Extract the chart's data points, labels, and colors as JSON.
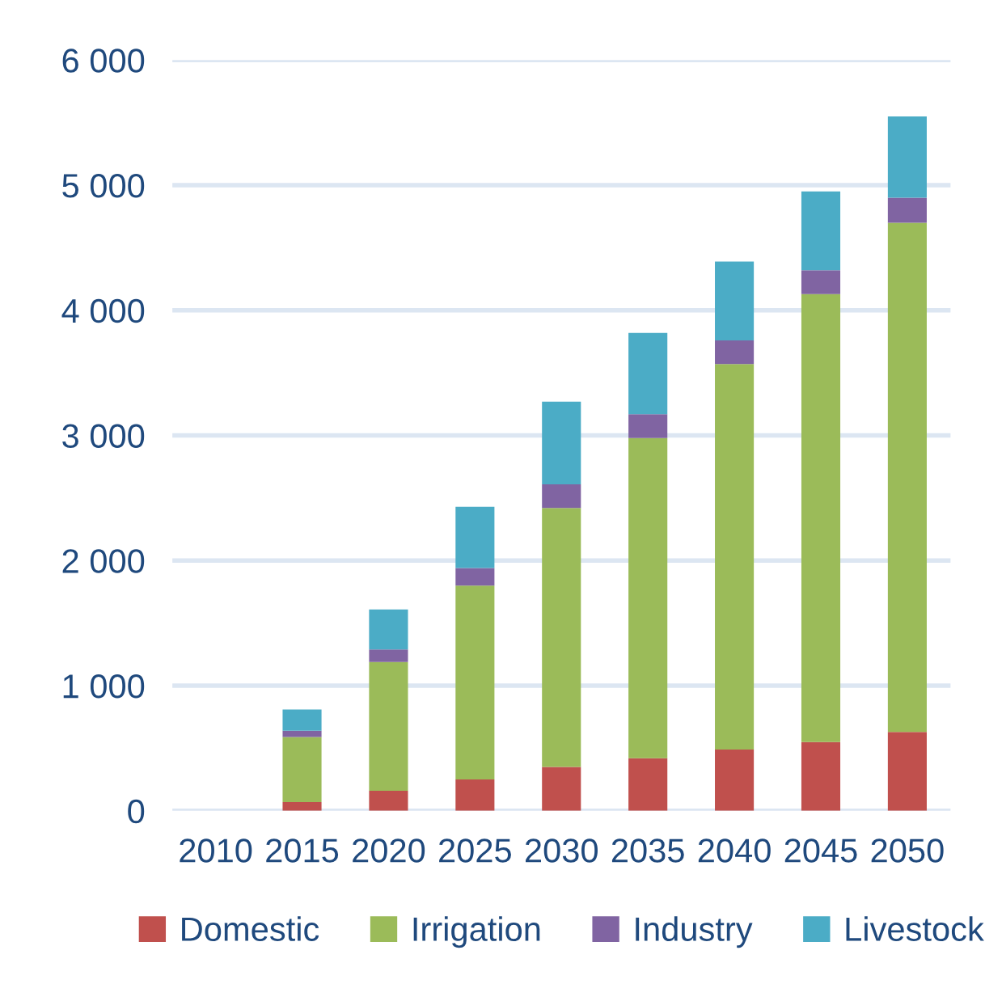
{
  "chart_data": {
    "type": "bar",
    "stacked": true,
    "categories": [
      "2010",
      "2015",
      "2020",
      "2025",
      "2030",
      "2035",
      "2040",
      "2045",
      "2050"
    ],
    "series": [
      {
        "name": "Domestic",
        "color": "#c0504d",
        "values": [
          0,
          70,
          160,
          250,
          350,
          420,
          490,
          550,
          630
        ]
      },
      {
        "name": "Irrigation",
        "color": "#9bbb59",
        "values": [
          0,
          520,
          1030,
          1550,
          2070,
          2560,
          3080,
          3580,
          4070
        ]
      },
      {
        "name": "Industry",
        "color": "#8064a2",
        "values": [
          0,
          50,
          100,
          140,
          190,
          190,
          190,
          190,
          200
        ]
      },
      {
        "name": "Livestock",
        "color": "#4bacc6",
        "values": [
          0,
          170,
          320,
          490,
          660,
          650,
          630,
          630,
          650
        ]
      }
    ],
    "ylim": [
      0,
      6000
    ],
    "yticks": [
      {
        "value": 0,
        "label": "0"
      },
      {
        "value": 1000,
        "label": "1 000"
      },
      {
        "value": 2000,
        "label": "2 000"
      },
      {
        "value": 3000,
        "label": "3 000"
      },
      {
        "value": 4000,
        "label": "4 000"
      },
      {
        "value": 5000,
        "label": "5 000"
      },
      {
        "value": 6000,
        "label": "6 000"
      }
    ],
    "grid": "y",
    "legend": "bottom"
  }
}
